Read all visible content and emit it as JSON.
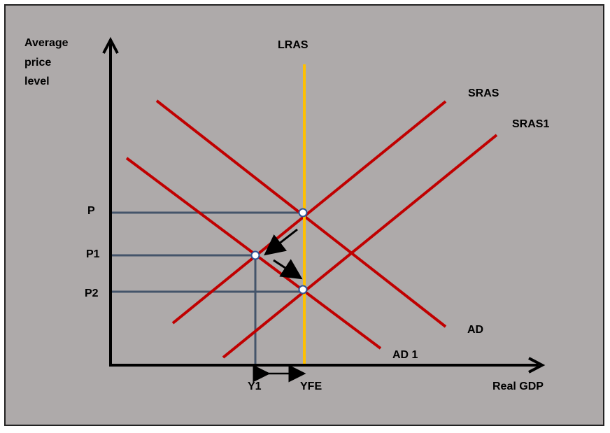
{
  "diagram": {
    "y_axis_label": [
      "Average",
      "price",
      "level"
    ],
    "x_axis_label": "Real GDP",
    "curves": {
      "lras": "LRAS",
      "sras": "SRAS",
      "sras1": "SRAS1",
      "ad": "AD",
      "ad1": "AD 1"
    },
    "price_levels": {
      "p": "P",
      "p1": "P1",
      "p2": "P2"
    },
    "output_levels": {
      "y1": "Y1",
      "yfe": "YFE"
    },
    "colors": {
      "background": "#aeaaaa",
      "curve": "#c00000",
      "lras": "#ffc000",
      "guide": "#44546a",
      "axis": "#000000"
    }
  }
}
